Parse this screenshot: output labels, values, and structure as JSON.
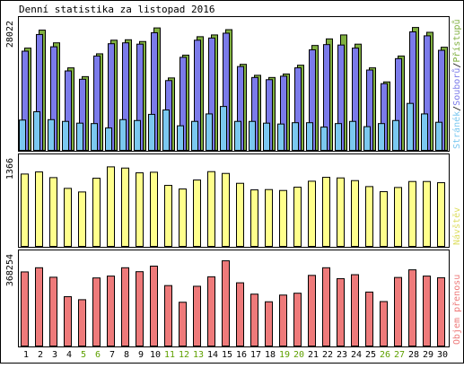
{
  "title": "Denní statistika za listopad 2016",
  "colors": {
    "hits": "#80b040",
    "files": "#7b7bea",
    "pages": "#7bc8f0",
    "visits": "#ffff8c",
    "kbytes": "#ee7a7a",
    "weekday_label": "#000000",
    "weekend_label": "#5ea000",
    "legend_hits": "#80b040",
    "legend_files": "#7b7bea",
    "legend_pages": "#7bc8f0",
    "legend_sep": "#000000",
    "legend_visits": "#dddd60",
    "legend_kbytes": "#ee7a7a"
  },
  "chart_data": [
    {
      "type": "bar",
      "panel": "requests",
      "ymax_label": "28022",
      "ylim": [
        0,
        28022
      ],
      "legend": [
        {
          "text": "Stránék",
          "color_key": "legend_pages"
        },
        {
          "text": "/",
          "color_key": "legend_sep"
        },
        {
          "text": "Souborů",
          "color_key": "legend_files"
        },
        {
          "text": "/",
          "color_key": "legend_sep"
        },
        {
          "text": "Přístupů",
          "color_key": "legend_hits"
        }
      ],
      "categories": [
        "1",
        "2",
        "3",
        "4",
        "5",
        "6",
        "7",
        "8",
        "9",
        "10",
        "11",
        "12",
        "13",
        "14",
        "15",
        "16",
        "17",
        "18",
        "19",
        "20",
        "21",
        "22",
        "23",
        "24",
        "25",
        "26",
        "27",
        "28",
        "29",
        "30"
      ],
      "weekend": [
        false,
        false,
        false,
        false,
        true,
        true,
        false,
        false,
        false,
        false,
        true,
        true,
        true,
        false,
        false,
        false,
        false,
        false,
        true,
        true,
        false,
        false,
        false,
        false,
        false,
        true,
        true,
        false,
        false,
        false
      ],
      "series": [
        {
          "name": "Přístupů",
          "color_key": "hits",
          "values": [
            23300,
            27400,
            24500,
            18800,
            16800,
            22000,
            25100,
            25200,
            24800,
            27900,
            16500,
            21700,
            25900,
            26300,
            27500,
            19600,
            17100,
            16600,
            17400,
            19400,
            23900,
            25400,
            26300,
            24200,
            18800,
            15600,
            21500,
            28000,
            26900,
            23500
          ]
        },
        {
          "name": "Souborů",
          "color_key": "files",
          "values": [
            22600,
            26400,
            23600,
            18100,
            16200,
            21500,
            24300,
            24500,
            24200,
            26800,
            15900,
            21200,
            25100,
            25600,
            26700,
            19100,
            16600,
            16100,
            16900,
            18800,
            22900,
            24100,
            24000,
            23300,
            18300,
            15200,
            20900,
            27000,
            26100,
            22800
          ]
        },
        {
          "name": "Stránék",
          "color_key": "pages",
          "values": [
            6900,
            8800,
            7000,
            6600,
            6200,
            6100,
            5100,
            7000,
            6800,
            8200,
            9200,
            5600,
            6600,
            8300,
            10000,
            6600,
            6600,
            6200,
            6000,
            6300,
            6300,
            5300,
            6100,
            6600,
            5400,
            6100,
            6800,
            10700,
            8300,
            6400
          ]
        }
      ]
    },
    {
      "type": "bar",
      "panel": "visits",
      "ymax_label": "1366",
      "ylim": [
        0,
        1366
      ],
      "legend": [
        {
          "text": "Návštěv",
          "color_key": "legend_visits"
        }
      ],
      "categories": [
        "1",
        "2",
        "3",
        "4",
        "5",
        "6",
        "7",
        "8",
        "9",
        "10",
        "11",
        "12",
        "13",
        "14",
        "15",
        "16",
        "17",
        "18",
        "19",
        "20",
        "21",
        "22",
        "23",
        "24",
        "25",
        "26",
        "27",
        "28",
        "29",
        "30"
      ],
      "series": [
        {
          "name": "Návštěv",
          "color_key": "visits",
          "values": [
            1210,
            1245,
            1150,
            970,
            910,
            1140,
            1330,
            1310,
            1230,
            1240,
            1020,
            960,
            1110,
            1250,
            1220,
            1055,
            945,
            950,
            935,
            990,
            1090,
            1155,
            1145,
            1100,
            1000,
            915,
            985,
            1085,
            1085,
            1065
          ]
        }
      ]
    },
    {
      "type": "bar",
      "panel": "kbytes",
      "ymax_label": "368254",
      "ylim": [
        0,
        368254
      ],
      "legend": [
        {
          "text": "Objem přenosu",
          "color_key": "legend_kbytes"
        }
      ],
      "categories": [
        "1",
        "2",
        "3",
        "4",
        "5",
        "6",
        "7",
        "8",
        "9",
        "10",
        "11",
        "12",
        "13",
        "14",
        "15",
        "16",
        "17",
        "18",
        "19",
        "20",
        "21",
        "22",
        "23",
        "24",
        "25",
        "26",
        "27",
        "28",
        "29",
        "30"
      ],
      "series": [
        {
          "name": "Objem přenosu",
          "color_key": "kbytes",
          "values": [
            320000,
            338000,
            297000,
            213000,
            200000,
            294000,
            302000,
            338000,
            321000,
            345000,
            261000,
            189000,
            258000,
            299000,
            368000,
            273000,
            224000,
            191000,
            220000,
            228000,
            305000,
            338000,
            291000,
            308000,
            233000,
            192000,
            296000,
            329000,
            302000,
            295000
          ]
        }
      ]
    }
  ]
}
